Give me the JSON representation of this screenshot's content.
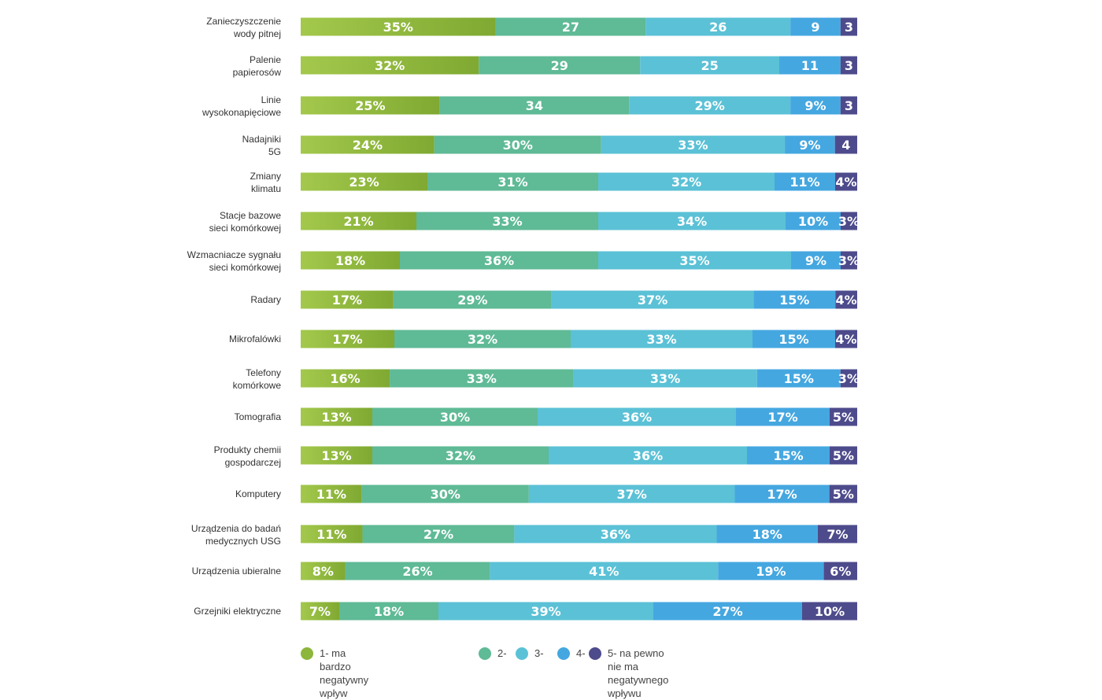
{
  "chart_data": {
    "type": "bar",
    "orientation": "horizontal",
    "stacked": true,
    "categories": [
      "Zanieczyszczenie\nwody pitnej",
      "Palenie\npapierosów",
      "Linie\nwysokonapięciowe",
      "Nadajniki\n5G",
      "Zmiany\nklimatu",
      "Stacje bazowe\nsieci komórkowej",
      "Wzmacniacze sygnału\nsieci komórkowej",
      "Radary",
      "Mikrofalówki",
      "Telefony\nkomórkowe",
      "Tomografia",
      "Produkty chemii\ngospodarczej",
      "Komputery",
      "Urządzenia  do badań\nmedycznych USG",
      "Urządzenia ubieralne",
      "Grzejniki elektryczne"
    ],
    "series": [
      {
        "name": "1- ma bardzo negatywny wpływ",
        "color": "#8db63c",
        "values": [
          35,
          32,
          25,
          24,
          23,
          21,
          18,
          17,
          17,
          16,
          13,
          13,
          11,
          11,
          8,
          7
        ],
        "labels": [
          "35%",
          "32%",
          "25%",
          "24%",
          "23%",
          "21%",
          "18%",
          "17%",
          "17%",
          "16%",
          "13%",
          "13%",
          "11%",
          "11%",
          "8%",
          "7%"
        ]
      },
      {
        "name": "2-",
        "color": "#5fba96",
        "values": [
          27,
          29,
          34,
          30,
          31,
          33,
          36,
          29,
          32,
          33,
          30,
          32,
          30,
          27,
          26,
          18
        ],
        "labels": [
          "27",
          "29",
          "34",
          "30%",
          "31%",
          "33%",
          "36%",
          "29%",
          "32%",
          "33%",
          "30%",
          "32%",
          "30%",
          "27%",
          "26%",
          "18%"
        ]
      },
      {
        "name": "3-",
        "color": "#5bc1d6",
        "values": [
          26,
          25,
          29,
          33,
          32,
          34,
          35,
          37,
          33,
          33,
          36,
          36,
          37,
          36,
          41,
          39
        ],
        "labels": [
          "26",
          "25",
          "29%",
          "33%",
          "32%",
          "34%",
          "35%",
          "37%",
          "33%",
          "33%",
          "36%",
          "36%",
          "37%",
          "36%",
          "41%",
          "39%"
        ]
      },
      {
        "name": "4-",
        "color": "#45a7e0",
        "values": [
          9,
          11,
          9,
          9,
          11,
          10,
          9,
          15,
          15,
          15,
          17,
          15,
          17,
          18,
          19,
          27
        ],
        "labels": [
          "9",
          "11",
          "9%",
          "9%",
          "11%",
          "10%",
          "9%",
          "15%",
          "15%",
          "15%",
          "17%",
          "15%",
          "17%",
          "18%",
          "19%",
          "27%"
        ]
      },
      {
        "name": "5- na pewno nie ma\nnegatywnego wpływu",
        "color": "#4e4b8c",
        "values": [
          3,
          3,
          3,
          4,
          4,
          3,
          3,
          4,
          4,
          3,
          5,
          5,
          5,
          7,
          6,
          10
        ],
        "labels": [
          "3",
          "3",
          "3",
          "4",
          "4%",
          "3%",
          "3%",
          "4%",
          "4%",
          "3%",
          "5%",
          "5%",
          "5%",
          "7%",
          "6%",
          "10%"
        ]
      }
    ],
    "xlim": [
      0,
      100
    ],
    "title": "",
    "xlabel": "",
    "ylabel": "",
    "grid": false,
    "legend_position": "bottom"
  }
}
